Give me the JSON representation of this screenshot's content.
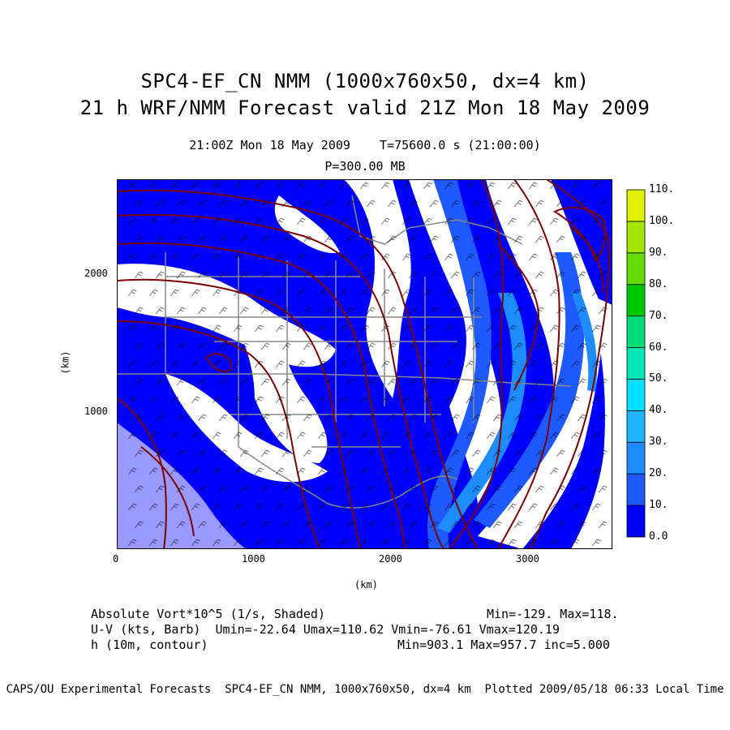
{
  "title": {
    "line1": "SPC4-EF_CN NMM (1000x760x50, dx=4 km)",
    "line2": "21 h WRF/NMM Forecast valid 21Z Mon 18 May 2009"
  },
  "subtitle": {
    "time": "21:00Z Mon 18 May 2009    T=75600.0 s (21:00:00)",
    "level": "P=300.00 MB"
  },
  "axes": {
    "x_label": "(km)",
    "y_label": "(km)",
    "x_ticks": [
      "0",
      "1000",
      "2000",
      "3000"
    ],
    "y_ticks": [
      "1000",
      "2000"
    ],
    "x_range_km": [
      0,
      3600
    ],
    "y_range_km": [
      0,
      2700
    ]
  },
  "colorbar": {
    "labels": [
      "0.0",
      "10.",
      "20.",
      "30.",
      "40.",
      "50.",
      "60.",
      "70.",
      "80.",
      "90.",
      "100.",
      "110."
    ],
    "colors": [
      "#0000ff",
      "#1e5aff",
      "#1e8cff",
      "#1eb4ff",
      "#00e1ff",
      "#00e6b4",
      "#00dc78",
      "#00c800",
      "#64dc00",
      "#a0e600",
      "#dcf000",
      "#ffe600"
    ]
  },
  "legend": {
    "row1_left": "Absolute Vort*10^5 (1/s, Shaded)",
    "row1_right": "Min=-129. Max=118.",
    "row2": "U-V (kts, Barb)  Umin=-22.64 Umax=110.62 Vmin=-76.61 Vmax=120.19",
    "row3_left": "h (10m, contour)",
    "row3_right": "Min=903.1 Max=957.7 inc=5.000"
  },
  "footer": "CAPS/OU Experimental Forecasts  SPC4-EF_CN NMM, 1000x760x50, dx=4 km  Plotted 2009/05/18 06:33 Local Time",
  "colors": {
    "shade_blue": "#0000ff",
    "shade_light": "#1e8cff",
    "contour": "#7a0000",
    "borders": "#888888",
    "barbs": "#000000"
  }
}
